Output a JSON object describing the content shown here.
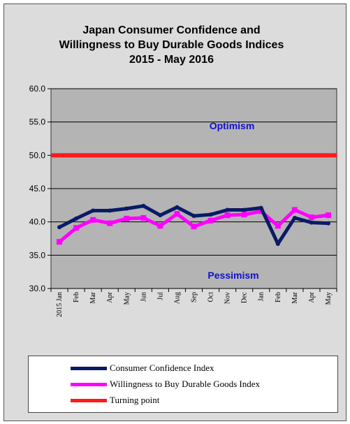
{
  "chart_data": {
    "type": "line",
    "title_lines": [
      "Japan Consumer Confidence and",
      "Willingness to Buy Durable Goods Indices",
      "2015 - May  2016"
    ],
    "categories": [
      "2015 Jan",
      "Feb",
      "Mar",
      "Apr",
      "May",
      "Jun",
      "Jul",
      "Aug",
      "Sep",
      "Oct",
      "Nov",
      "Dec",
      "Jan",
      "Feb",
      "Mar",
      "Apr",
      "May"
    ],
    "y_ticks": [
      "30.0",
      "35.0",
      "40.0",
      "45.0",
      "50.0",
      "55.0",
      "60.0"
    ],
    "ylim": [
      30,
      60
    ],
    "grid": true,
    "legend_position": "bottom",
    "series": [
      {
        "name": "Consumer Confidence Index",
        "color": "#0a1a66",
        "values": [
          39.2,
          40.5,
          41.7,
          41.7,
          42.0,
          42.4,
          41.0,
          42.2,
          40.9,
          41.1,
          41.8,
          41.8,
          42.1,
          36.7,
          40.6,
          39.9,
          39.8
        ]
      },
      {
        "name": "Willingness to Buy Durable Goods Index",
        "color": "#ff00ff",
        "values": [
          37.0,
          39.1,
          40.3,
          39.8,
          40.5,
          40.6,
          39.4,
          41.2,
          39.3,
          40.2,
          41.0,
          41.1,
          41.6,
          39.4,
          41.8,
          40.7,
          41.0
        ]
      },
      {
        "name": "Turning point",
        "color": "#ff1a1a",
        "values": [
          50,
          50,
          50,
          50,
          50,
          50,
          50,
          50,
          50,
          50,
          50,
          50,
          50,
          50,
          50,
          50,
          50
        ]
      }
    ],
    "annotations": {
      "optimism": "Optimism",
      "pessimism": "Pessimism"
    },
    "colors": {
      "plot_bg": "#b4b4b4",
      "annotation": "#1010d0"
    }
  }
}
